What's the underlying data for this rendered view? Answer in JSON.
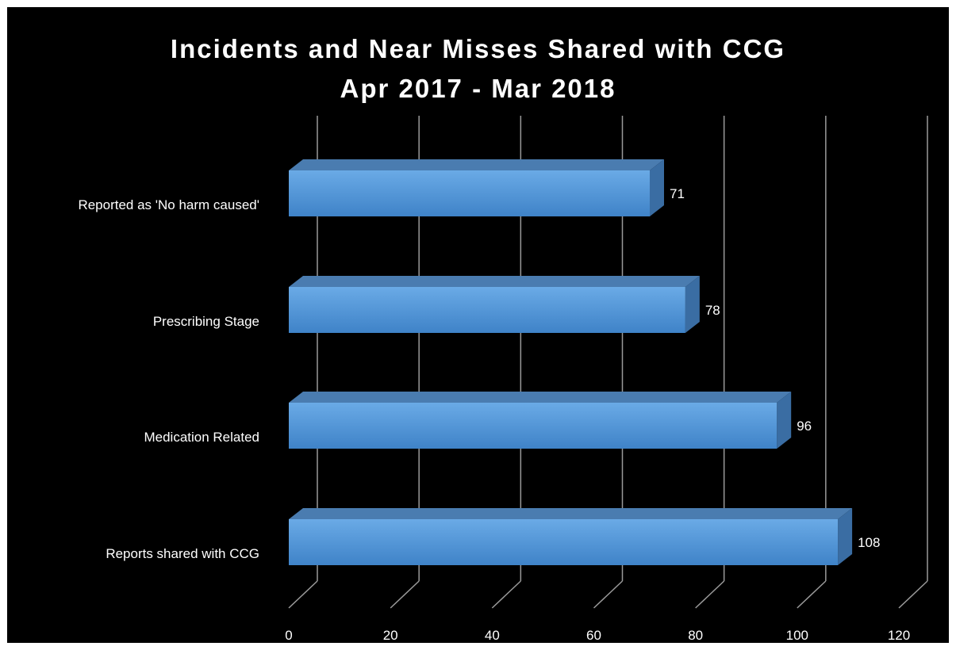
{
  "chart_data": {
    "type": "bar",
    "orientation": "horizontal",
    "style": "3d",
    "title_line1": "Incidents and Near Misses Shared with CCG",
    "title_line2": "Apr 2017 - Mar 2018",
    "categories": [
      "Reported as 'No harm caused'",
      "Prescribing Stage",
      "Medication Related",
      "Reports shared with CCG"
    ],
    "values": [
      71,
      78,
      96,
      108
    ],
    "value_labels": [
      "71",
      "78",
      "96",
      "108"
    ],
    "xlim": [
      0,
      120
    ],
    "x_ticks": [
      0,
      20,
      40,
      60,
      80,
      100,
      120
    ],
    "x_tick_labels": [
      "0",
      "20",
      "40",
      "60",
      "80",
      "100",
      "120"
    ],
    "grid": true,
    "data_labels": true,
    "colors": {
      "background": "#000000",
      "bar_front": "#5a9bdc",
      "bar_top": "#4a7cb0",
      "bar_side": "#3a6da3",
      "text": "#ffffff",
      "grid": "#9a9a9a"
    }
  }
}
